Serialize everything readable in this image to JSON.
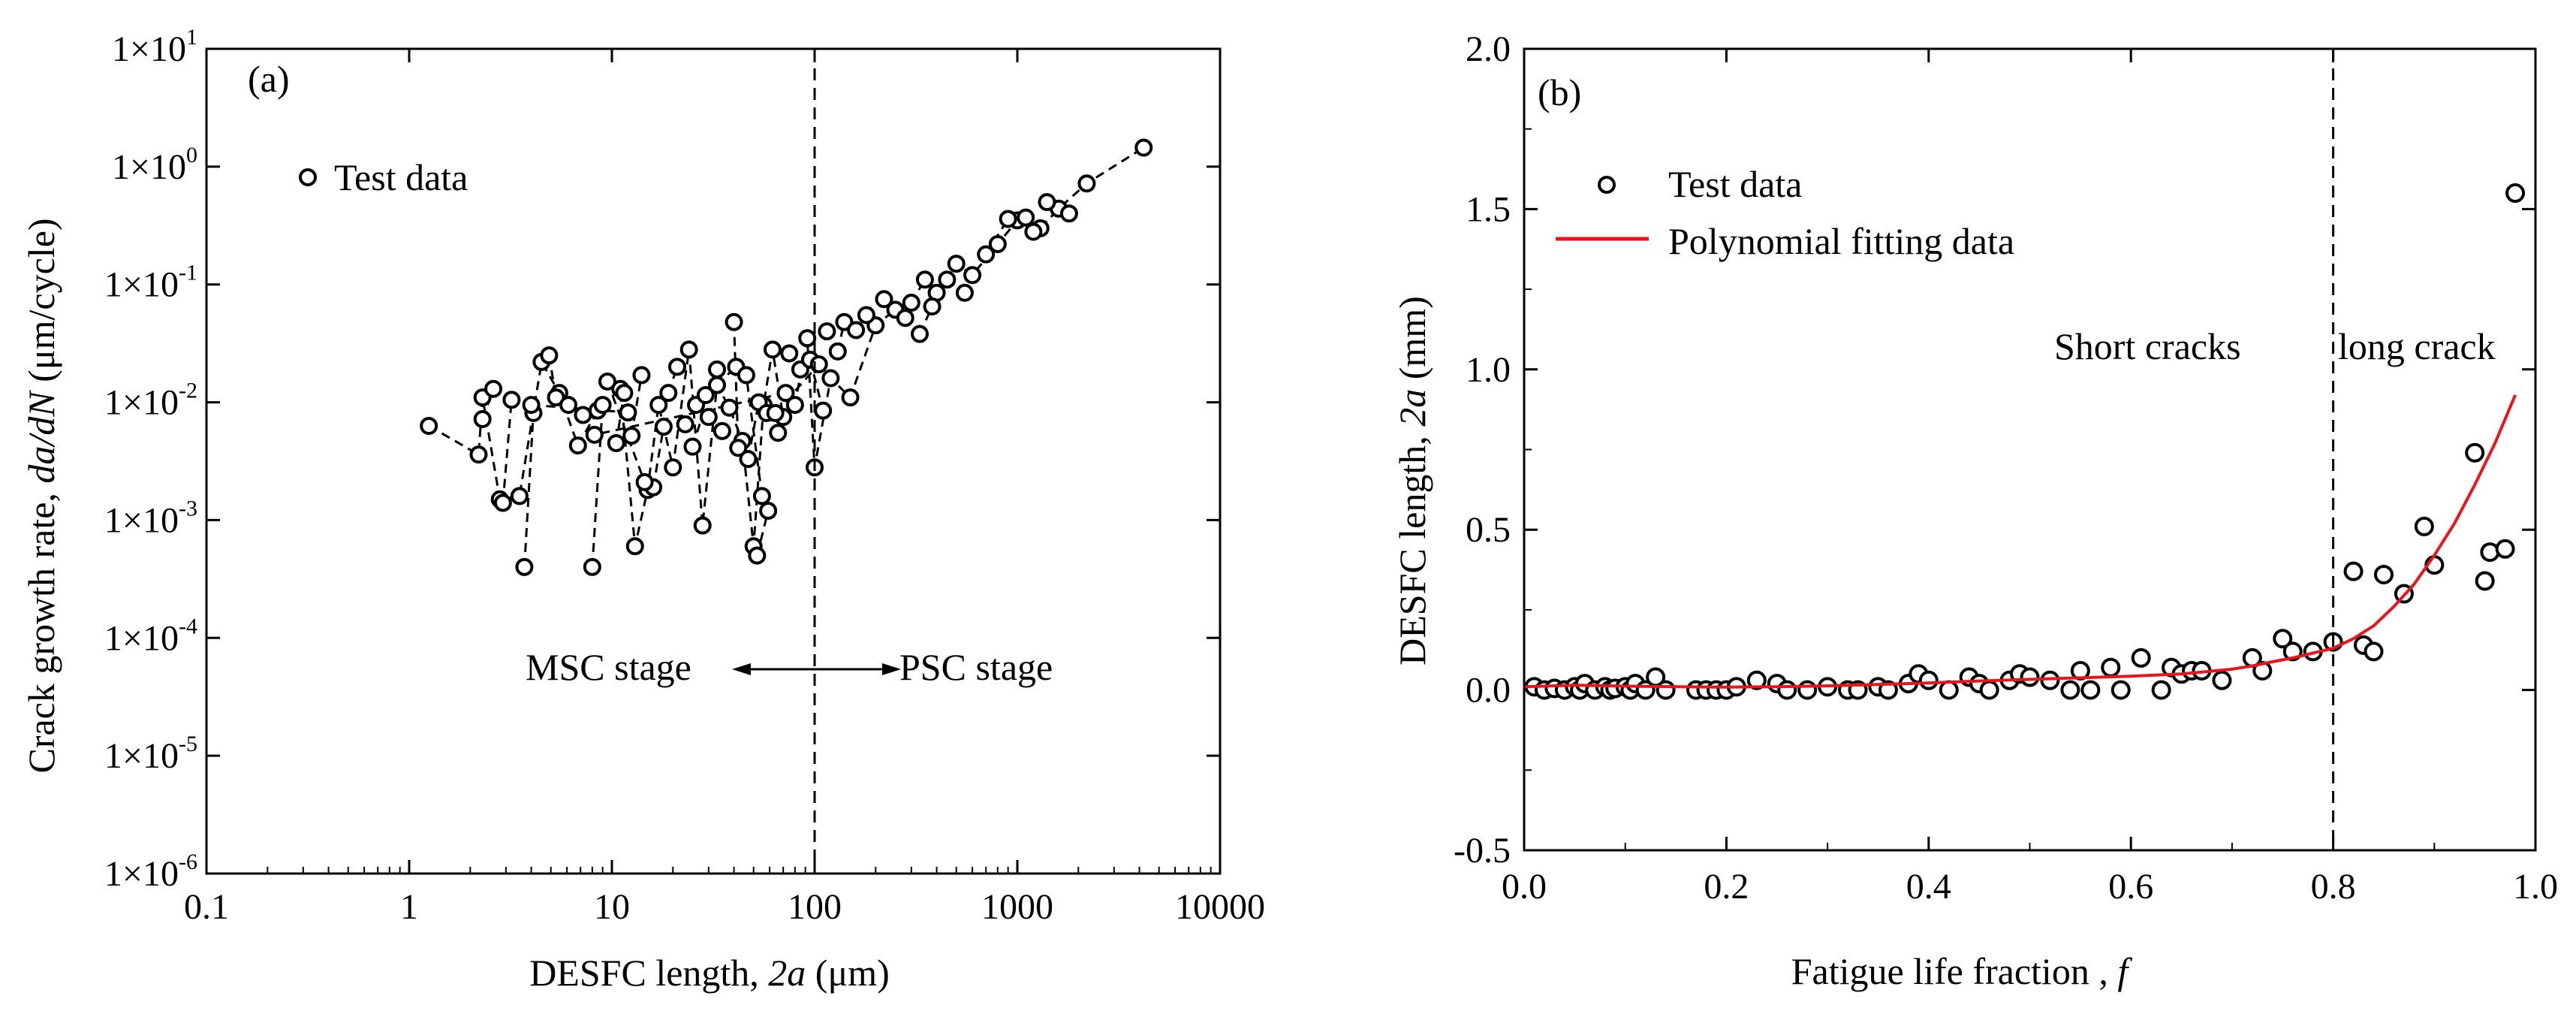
{
  "figure": {
    "panels": [
      "(a)",
      "(b)"
    ]
  },
  "chart_data": [
    {
      "panel": "(a)",
      "type": "scatter",
      "title": "",
      "xlabel": {
        "prefix": "DESFC length, ",
        "var": "2a",
        "suffix": " (μm)"
      },
      "ylabel": {
        "prefix": "Crack growth rate, ",
        "var": "da/dN",
        "suffix": " (μm/cycle)"
      },
      "xscale": "log",
      "yscale": "log",
      "xlim": [
        0.1,
        10000
      ],
      "ylim": [
        1e-06,
        10
      ],
      "xticks": [
        0.1,
        1,
        10,
        100,
        1000,
        10000
      ],
      "xticklabels": [
        "0.1",
        "1",
        "10",
        "100",
        "1000",
        "10000"
      ],
      "yticks": [
        1e-06,
        1e-05,
        0.0001,
        0.001,
        0.01,
        0.1,
        1,
        10
      ],
      "yticklabels": [
        {
          "base": "1×10",
          "exp": "-6"
        },
        {
          "base": "1×10",
          "exp": "-5"
        },
        {
          "base": "1×10",
          "exp": "-4"
        },
        {
          "base": "1×10",
          "exp": "-3"
        },
        {
          "base": "1×10",
          "exp": "-2"
        },
        {
          "base": "1×10",
          "exp": "-1"
        },
        {
          "base": "1×10",
          "exp": "0"
        },
        {
          "base": "1×10",
          "exp": "1"
        }
      ],
      "legend": {
        "position": "top-left",
        "entries": [
          {
            "label": "Test data",
            "marker": "open-circle"
          }
        ]
      },
      "vline": {
        "x": 100,
        "style": "dashed"
      },
      "annotations": {
        "left": "MSC stage",
        "right": "PSC stage",
        "arrow_y": 0.0001
      },
      "series": [
        {
          "name": "Test data",
          "style": "dashed-line-open-circles",
          "x": [
            1.25,
            2.2,
            2.3,
            2.8,
            3.5,
            4.5,
            5.5,
            6.8,
            8.5,
            11,
            13,
            15,
            17,
            20,
            24,
            28,
            33,
            38,
            44,
            50,
            56,
            62,
            70,
            80,
            92,
            100,
            120,
            150,
            200,
            250,
            300,
            350,
            400,
            500,
            600,
            800,
            1000,
            1300,
            1600,
            2200,
            4200
          ],
          "y": [
            0.0063,
            0.0036,
            0.011,
            0.0015,
            0.0016,
            0.022,
            0.012,
            0.0043,
            0.0085,
            0.013,
            0.0006,
            0.0018,
            0.0095,
            0.0028,
            0.028,
            0.0009,
            0.014,
            0.009,
            0.0047,
            0.0006,
            0.0095,
            0.028,
            0.0075,
            0.0095,
            0.035,
            0.0028,
            0.016,
            0.011,
            0.045,
            0.061,
            0.07,
            0.11,
            0.085,
            0.15,
            0.12,
            0.22,
            0.35,
            0.3,
            0.44,
            0.72,
            1.45
          ]
        },
        {
          "name": "Test data (scatter)",
          "style": "open-circles",
          "x": [
            2.3,
            2.6,
            2.9,
            3.2,
            3.7,
            4.1,
            4.9,
            5.3,
            6.1,
            7.2,
            8.0,
            9.0,
            10.5,
            11.5,
            12.5,
            14.0,
            16.0,
            18.0,
            19.0,
            21.0,
            23.0,
            26.0,
            30.0,
            35.0,
            40.0,
            42.0,
            47.0,
            53.0,
            58.0,
            66.0,
            75.0,
            85.0,
            95.0,
            110.0,
            130.0,
            140.0,
            160.0,
            180.0,
            220.0,
            280.0,
            330.0,
            380.0,
            450.0,
            550.0,
            700.0,
            900.0,
            1100.0,
            1200.0,
            1400.0,
            1800.0,
            9.5,
            14.5,
            29.0,
            41.0,
            52.0,
            59.0,
            72.0,
            8.2,
            4.0,
            12.0,
            55.0,
            46.0,
            25.0,
            33.0,
            64.0,
            105.0,
            115.0
          ],
          "y": [
            0.0072,
            0.013,
            0.0014,
            0.0105,
            0.0004,
            0.0081,
            0.025,
            0.011,
            0.0095,
            0.0078,
            0.0004,
            0.0095,
            0.0045,
            0.012,
            0.0052,
            0.017,
            0.0019,
            0.0062,
            0.012,
            0.02,
            0.0065,
            0.0095,
            0.0075,
            0.0057,
            0.048,
            0.0041,
            0.0033,
            0.01,
            0.0081,
            0.0055,
            0.026,
            0.019,
            0.023,
            0.0085,
            0.027,
            0.048,
            0.041,
            0.055,
            0.075,
            0.052,
            0.038,
            0.065,
            0.11,
            0.085,
            0.18,
            0.36,
            0.37,
            0.28,
            0.5,
            0.4,
            0.015,
            0.0021,
            0.0115,
            0.02,
            0.0005,
            0.0012,
            0.012,
            0.0053,
            0.0095,
            0.0082,
            0.0016,
            0.017,
            0.0042,
            0.019,
            0.0081,
            0.021,
            0.04
          ]
        }
      ]
    },
    {
      "panel": "(b)",
      "type": "scatter",
      "title": "",
      "xlabel": {
        "prefix": "Fatigue life fraction , ",
        "var": "f",
        "suffix": ""
      },
      "ylabel": {
        "prefix": "DESFC length, ",
        "var": "2a",
        "suffix": " (mm)"
      },
      "xscale": "linear",
      "yscale": "linear",
      "xlim": [
        0.0,
        1.0
      ],
      "ylim": [
        -0.5,
        2.0
      ],
      "xticks": [
        0.0,
        0.2,
        0.4,
        0.6,
        0.8,
        1.0
      ],
      "xticklabels": [
        "0.0",
        "0.2",
        "0.4",
        "0.6",
        "0.8",
        "1.0"
      ],
      "yticks": [
        -0.5,
        0.0,
        0.5,
        1.0,
        1.5,
        2.0
      ],
      "yticklabels": [
        "-0.5",
        "0.0",
        "0.5",
        "1.0",
        "1.5",
        "2.0"
      ],
      "legend": {
        "position": "top-left",
        "entries": [
          {
            "label": "Test data",
            "marker": "open-circle"
          },
          {
            "label": "Polynomial fitting data",
            "marker": "red-line",
            "color": "#e8151b"
          }
        ]
      },
      "vline": {
        "x": 0.8,
        "style": "dashed"
      },
      "annotations": {
        "left": "Short cracks",
        "right": "long crack"
      },
      "series": [
        {
          "name": "Test data",
          "style": "open-circles",
          "x": [
            0.01,
            0.02,
            0.03,
            0.04,
            0.05,
            0.055,
            0.06,
            0.07,
            0.08,
            0.085,
            0.09,
            0.1,
            0.105,
            0.11,
            0.12,
            0.13,
            0.14,
            0.17,
            0.18,
            0.19,
            0.2,
            0.21,
            0.23,
            0.25,
            0.26,
            0.28,
            0.3,
            0.32,
            0.33,
            0.35,
            0.36,
            0.38,
            0.39,
            0.4,
            0.42,
            0.44,
            0.45,
            0.46,
            0.48,
            0.49,
            0.5,
            0.52,
            0.54,
            0.55,
            0.56,
            0.58,
            0.59,
            0.61,
            0.63,
            0.64,
            0.65,
            0.66,
            0.67,
            0.69,
            0.72,
            0.73,
            0.75,
            0.76,
            0.78,
            0.8,
            0.82,
            0.83,
            0.84,
            0.85,
            0.87,
            0.89,
            0.9,
            0.94,
            0.95,
            0.955,
            0.97,
            0.98
          ],
          "y": [
            0.01,
            0.0,
            0.005,
            0.0,
            0.01,
            0.0,
            0.02,
            0.0,
            0.01,
            0.0,
            0.005,
            0.01,
            0.0,
            0.02,
            0.0,
            0.04,
            0.0,
            0.0,
            0.0,
            0.0,
            0.0,
            0.01,
            0.03,
            0.02,
            0.0,
            0.0,
            0.01,
            0.0,
            0.0,
            0.01,
            0.0,
            0.02,
            0.05,
            0.03,
            0.0,
            0.04,
            0.02,
            0.0,
            0.03,
            0.05,
            0.04,
            0.03,
            0.0,
            0.06,
            0.0,
            0.07,
            0.0,
            0.1,
            0.0,
            0.07,
            0.05,
            0.06,
            0.06,
            0.03,
            0.1,
            0.06,
            0.16,
            0.12,
            0.12,
            0.15,
            0.37,
            0.14,
            0.12,
            0.36,
            0.3,
            0.51,
            0.39,
            0.74,
            0.34,
            0.43,
            0.44,
            1.55
          ]
        },
        {
          "name": "Polynomial fitting data",
          "style": "red-line",
          "color": "#e8151b",
          "x": [
            0.0,
            0.05,
            0.1,
            0.15,
            0.2,
            0.25,
            0.3,
            0.35,
            0.4,
            0.45,
            0.5,
            0.55,
            0.6,
            0.65,
            0.7,
            0.72,
            0.74,
            0.76,
            0.78,
            0.8,
            0.82,
            0.84,
            0.86,
            0.88,
            0.9,
            0.92,
            0.94,
            0.96,
            0.98
          ],
          "y": [
            0.01,
            0.015,
            0.012,
            0.01,
            0.009,
            0.01,
            0.013,
            0.017,
            0.022,
            0.028,
            0.033,
            0.038,
            0.043,
            0.05,
            0.065,
            0.075,
            0.088,
            0.1,
            0.115,
            0.13,
            0.16,
            0.2,
            0.26,
            0.33,
            0.42,
            0.52,
            0.64,
            0.77,
            0.92
          ]
        }
      ]
    }
  ]
}
